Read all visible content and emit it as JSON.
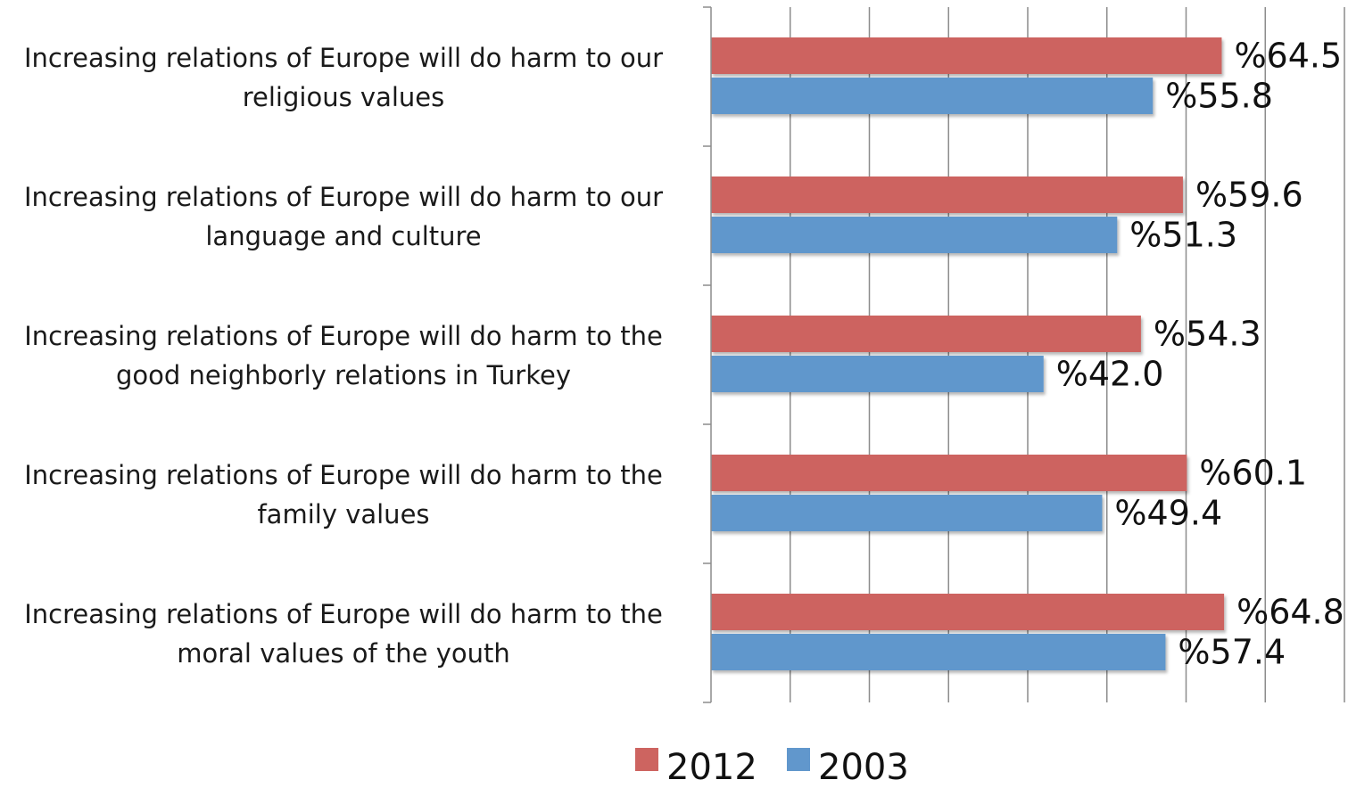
{
  "chart_data": {
    "type": "bar",
    "orientation": "horizontal",
    "categories": [
      [
        "Increasing relations of Europe will do harm to our",
        "religious values"
      ],
      [
        "Increasing relations of Europe will do harm to our",
        "language and culture"
      ],
      [
        "Increasing relations of Europe will do harm to the",
        "good neighborly relations in Turkey"
      ],
      [
        "Increasing relations of Europe will do harm to the",
        "family values"
      ],
      [
        "Increasing relations of Europe will do harm to the",
        "moral values of the youth"
      ]
    ],
    "series": [
      {
        "name": "2012",
        "color": "#cd6460",
        "values": [
          64.5,
          59.6,
          54.3,
          60.1,
          64.8
        ],
        "labels": [
          "%64.5",
          "%59.6",
          "%54.3",
          "%60.1",
          "%64.8"
        ]
      },
      {
        "name": "2003",
        "color": "#6197cc",
        "values": [
          55.8,
          51.3,
          42.0,
          49.4,
          57.4
        ],
        "labels": [
          "%55.8",
          "%51.3",
          "%42.0",
          "%49.4",
          "%57.4"
        ]
      }
    ],
    "xlim": [
      0,
      80
    ],
    "grid": true,
    "legend": "bottom-center"
  }
}
